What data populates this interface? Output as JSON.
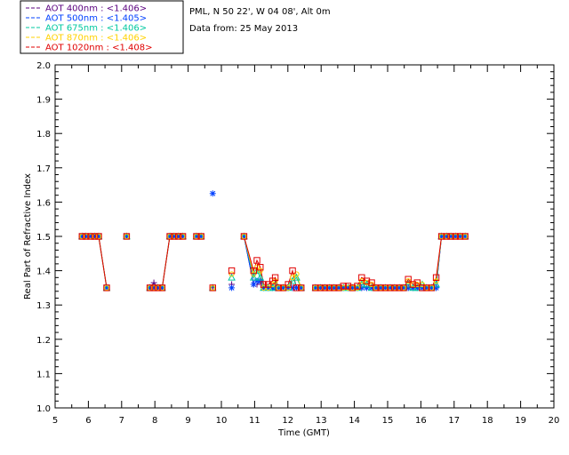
{
  "chart_data": {
    "type": "line",
    "title": "",
    "site_line": "PML, N 50 22', W 04 08', Alt 0m",
    "date_line": "Data from: 25 May 2013",
    "xlabel": "Time (GMT)",
    "ylabel": "Real Part of Refractive Index",
    "xlim": [
      5,
      20
    ],
    "ylim": [
      1.0,
      2.0
    ],
    "xticks": [
      "5",
      "6",
      "7",
      "8",
      "9",
      "10",
      "11",
      "12",
      "13",
      "14",
      "15",
      "16",
      "17",
      "18",
      "19",
      "20"
    ],
    "yticks": [
      "1.0",
      "1.1",
      "1.2",
      "1.3",
      "1.4",
      "1.5",
      "1.6",
      "1.7",
      "1.8",
      "1.9",
      "2.0"
    ],
    "grid": false,
    "legend_position": "top-left-outside",
    "series": [
      {
        "name": "AOT  400nm : <1.406>",
        "color": "#5a007f",
        "marker": "plus",
        "x": [
          5.81,
          5.93,
          6.07,
          6.19,
          6.31,
          6.55,
          7.15,
          7.85,
          7.97,
          8.09,
          8.22,
          8.45,
          8.58,
          8.71,
          8.84,
          9.25,
          9.39,
          9.74,
          10.31,
          10.68,
          10.97,
          11.07,
          11.17,
          11.27,
          11.41,
          11.54,
          11.62,
          11.72,
          11.86,
          12.01,
          12.14,
          12.26,
          12.4,
          12.83,
          12.98,
          13.11,
          13.25,
          13.39,
          13.53,
          13.67,
          13.81,
          13.94,
          14.09,
          14.22,
          14.37,
          14.52,
          14.65,
          14.79,
          14.93,
          15.08,
          15.21,
          15.35,
          15.48,
          15.62,
          15.76,
          15.89,
          16.04,
          16.17,
          16.32,
          16.46,
          16.62,
          16.77,
          16.9,
          17.04,
          17.18,
          17.33
        ],
        "y": [
          1.5,
          1.5,
          1.5,
          1.5,
          1.5,
          1.35,
          1.5,
          1.35,
          1.365,
          1.35,
          1.35,
          1.5,
          1.5,
          1.5,
          1.5,
          1.5,
          1.5,
          1.35,
          1.36,
          1.5,
          1.36,
          1.36,
          1.37,
          1.35,
          1.35,
          1.35,
          1.35,
          1.35,
          1.35,
          1.35,
          1.35,
          1.35,
          1.35,
          1.35,
          1.35,
          1.35,
          1.35,
          1.35,
          1.35,
          1.35,
          1.35,
          1.35,
          1.35,
          1.35,
          1.35,
          1.35,
          1.35,
          1.35,
          1.35,
          1.35,
          1.35,
          1.35,
          1.35,
          1.35,
          1.35,
          1.35,
          1.35,
          1.35,
          1.35,
          1.35,
          1.5,
          1.5,
          1.5,
          1.5,
          1.5,
          1.5
        ]
      },
      {
        "name": "AOT  500nm : <1.405>",
        "color": "#0040ff",
        "marker": "star",
        "x": [
          5.81,
          5.93,
          6.07,
          6.19,
          6.31,
          6.55,
          7.15,
          7.85,
          7.97,
          8.09,
          8.22,
          8.45,
          8.58,
          8.71,
          8.84,
          9.25,
          9.39,
          9.74,
          10.31,
          10.68,
          10.97,
          11.07,
          11.17,
          11.27,
          11.41,
          11.54,
          11.62,
          11.72,
          11.86,
          12.01,
          12.14,
          12.26,
          12.4,
          12.83,
          12.98,
          13.11,
          13.25,
          13.39,
          13.53,
          13.67,
          13.81,
          13.94,
          14.09,
          14.22,
          14.37,
          14.52,
          14.65,
          14.79,
          14.93,
          15.08,
          15.21,
          15.35,
          15.48,
          15.62,
          15.76,
          15.89,
          16.04,
          16.17,
          16.32,
          16.46,
          16.62,
          16.77,
          16.9,
          17.04,
          17.18,
          17.33
        ],
        "y": [
          1.5,
          1.5,
          1.5,
          1.5,
          1.5,
          1.35,
          1.5,
          1.35,
          1.35,
          1.35,
          1.35,
          1.5,
          1.5,
          1.5,
          1.5,
          1.5,
          1.5,
          1.625,
          1.35,
          1.5,
          1.36,
          1.37,
          1.37,
          1.35,
          1.35,
          1.35,
          1.35,
          1.35,
          1.35,
          1.35,
          1.35,
          1.35,
          1.35,
          1.35,
          1.35,
          1.35,
          1.35,
          1.35,
          1.35,
          1.35,
          1.35,
          1.35,
          1.35,
          1.35,
          1.35,
          1.35,
          1.35,
          1.35,
          1.35,
          1.35,
          1.35,
          1.35,
          1.35,
          1.35,
          1.35,
          1.35,
          1.35,
          1.35,
          1.35,
          1.35,
          1.5,
          1.5,
          1.5,
          1.5,
          1.5,
          1.5
        ]
      },
      {
        "name": "AOT  675nm : <1.406>",
        "color": "#00c8a0",
        "marker": "triangle",
        "x": [
          5.81,
          5.93,
          6.07,
          6.19,
          6.31,
          6.55,
          7.15,
          7.85,
          7.97,
          8.09,
          8.22,
          8.45,
          8.58,
          8.71,
          8.84,
          9.25,
          9.39,
          9.74,
          10.31,
          10.68,
          10.97,
          11.07,
          11.17,
          11.27,
          11.41,
          11.54,
          11.62,
          11.72,
          11.86,
          12.01,
          12.14,
          12.26,
          12.4,
          12.83,
          12.98,
          13.11,
          13.25,
          13.39,
          13.53,
          13.67,
          13.81,
          13.94,
          14.09,
          14.22,
          14.37,
          14.52,
          14.65,
          14.79,
          14.93,
          15.08,
          15.21,
          15.35,
          15.48,
          15.62,
          15.76,
          15.89,
          16.04,
          16.17,
          16.32,
          16.46,
          16.62,
          16.77,
          16.9,
          17.04,
          17.18,
          17.33
        ],
        "y": [
          1.5,
          1.5,
          1.5,
          1.5,
          1.5,
          1.35,
          1.5,
          1.35,
          1.35,
          1.35,
          1.35,
          1.5,
          1.5,
          1.5,
          1.5,
          1.5,
          1.5,
          1.35,
          1.38,
          1.5,
          1.38,
          1.4,
          1.38,
          1.35,
          1.35,
          1.35,
          1.36,
          1.35,
          1.35,
          1.35,
          1.37,
          1.38,
          1.35,
          1.35,
          1.35,
          1.35,
          1.35,
          1.35,
          1.35,
          1.35,
          1.35,
          1.35,
          1.35,
          1.36,
          1.36,
          1.35,
          1.35,
          1.35,
          1.35,
          1.35,
          1.35,
          1.35,
          1.35,
          1.36,
          1.35,
          1.35,
          1.36,
          1.35,
          1.35,
          1.36,
          1.5,
          1.5,
          1.5,
          1.5,
          1.5,
          1.5
        ]
      },
      {
        "name": "AOT  870nm : <1.406>",
        "color": "#ffd200",
        "marker": "circle",
        "x": [
          5.81,
          5.93,
          6.07,
          6.19,
          6.31,
          6.55,
          7.15,
          7.85,
          7.97,
          8.09,
          8.22,
          8.45,
          8.58,
          8.71,
          8.84,
          9.25,
          9.39,
          9.74,
          10.31,
          10.68,
          10.97,
          11.07,
          11.17,
          11.27,
          11.41,
          11.54,
          11.62,
          11.72,
          11.86,
          12.01,
          12.14,
          12.26,
          12.4,
          12.83,
          12.98,
          13.11,
          13.25,
          13.39,
          13.53,
          13.67,
          13.81,
          13.94,
          14.09,
          14.22,
          14.37,
          14.52,
          14.65,
          14.79,
          14.93,
          15.08,
          15.21,
          15.35,
          15.48,
          15.62,
          15.76,
          15.89,
          16.04,
          16.17,
          16.32,
          16.46,
          16.62,
          16.77,
          16.9,
          17.04,
          17.18,
          17.33
        ],
        "y": [
          1.5,
          1.5,
          1.5,
          1.5,
          1.5,
          1.35,
          1.5,
          1.35,
          1.35,
          1.35,
          1.35,
          1.5,
          1.5,
          1.5,
          1.5,
          1.5,
          1.5,
          1.35,
          1.39,
          1.5,
          1.39,
          1.41,
          1.4,
          1.35,
          1.35,
          1.36,
          1.37,
          1.35,
          1.35,
          1.35,
          1.38,
          1.39,
          1.35,
          1.35,
          1.35,
          1.35,
          1.35,
          1.35,
          1.35,
          1.35,
          1.35,
          1.35,
          1.35,
          1.37,
          1.365,
          1.36,
          1.35,
          1.35,
          1.35,
          1.35,
          1.35,
          1.35,
          1.35,
          1.37,
          1.36,
          1.36,
          1.36,
          1.35,
          1.35,
          1.37,
          1.5,
          1.5,
          1.5,
          1.5,
          1.5,
          1.5
        ]
      },
      {
        "name": "AOT 1020nm : <1.408>",
        "color": "#e00000",
        "marker": "square",
        "x": [
          5.81,
          5.93,
          6.07,
          6.19,
          6.31,
          6.55,
          7.15,
          7.85,
          7.97,
          8.09,
          8.22,
          8.45,
          8.58,
          8.71,
          8.84,
          9.25,
          9.39,
          9.74,
          10.31,
          10.68,
          10.97,
          11.07,
          11.17,
          11.27,
          11.41,
          11.54,
          11.62,
          11.72,
          11.86,
          12.01,
          12.14,
          12.26,
          12.4,
          12.83,
          12.98,
          13.11,
          13.25,
          13.39,
          13.53,
          13.67,
          13.81,
          13.94,
          14.09,
          14.22,
          14.37,
          14.52,
          14.65,
          14.79,
          14.93,
          15.08,
          15.21,
          15.35,
          15.48,
          15.62,
          15.76,
          15.89,
          16.04,
          16.17,
          16.32,
          16.46,
          16.62,
          16.77,
          16.9,
          17.04,
          17.18,
          17.33
        ],
        "y": [
          1.5,
          1.5,
          1.5,
          1.5,
          1.5,
          1.35,
          1.5,
          1.35,
          1.35,
          1.35,
          1.35,
          1.5,
          1.5,
          1.5,
          1.5,
          1.5,
          1.5,
          1.35,
          1.4,
          1.5,
          1.4,
          1.43,
          1.41,
          1.36,
          1.36,
          1.37,
          1.38,
          1.35,
          1.35,
          1.36,
          1.4,
          1.35,
          1.35,
          1.35,
          1.35,
          1.35,
          1.35,
          1.35,
          1.35,
          1.355,
          1.355,
          1.35,
          1.355,
          1.38,
          1.37,
          1.365,
          1.35,
          1.35,
          1.35,
          1.35,
          1.35,
          1.35,
          1.35,
          1.375,
          1.36,
          1.365,
          1.35,
          1.35,
          1.35,
          1.38,
          1.5,
          1.5,
          1.5,
          1.5,
          1.5,
          1.5
        ]
      }
    ]
  }
}
